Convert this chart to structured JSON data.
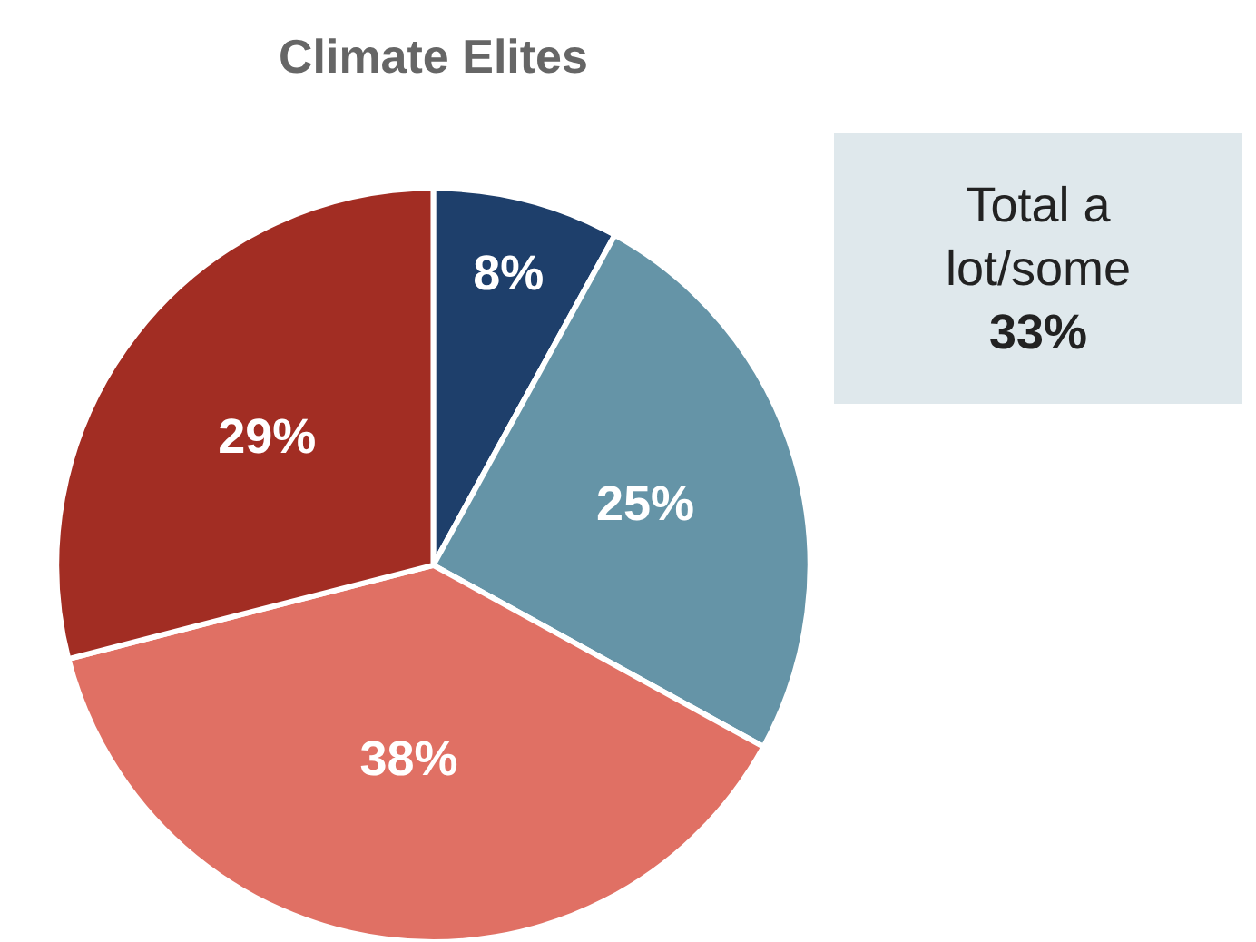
{
  "chart_data": {
    "type": "pie",
    "title": "Climate Elites",
    "categories": [
      null,
      null,
      null,
      null
    ],
    "values": [
      8,
      25,
      38,
      29
    ],
    "value_labels": [
      "8%",
      "25%",
      "38%",
      "29%"
    ],
    "colors": [
      "#1e3f6b",
      "#6594a7",
      "#e07064",
      "#a22d23"
    ],
    "annotations": [
      "Total a lot/some",
      "33%"
    ],
    "legend": false
  }
}
